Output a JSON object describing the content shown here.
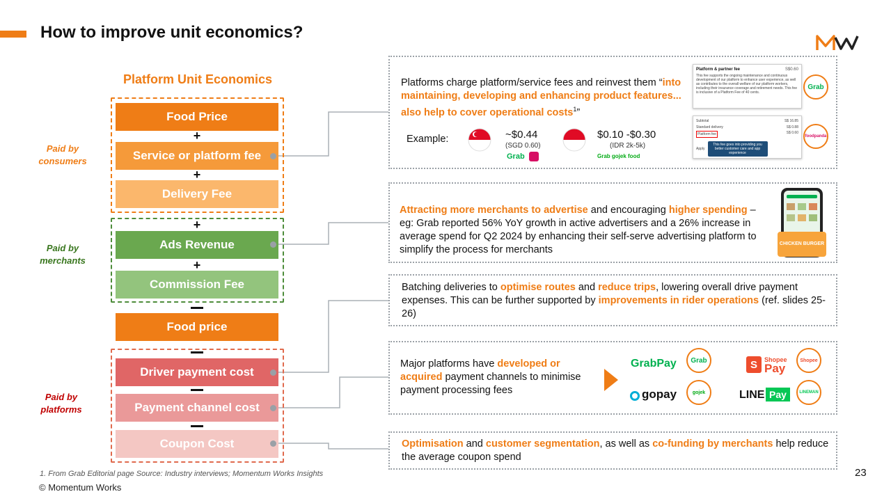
{
  "header": {
    "title": "How to improve unit economics?"
  },
  "logo_text": "MW",
  "page_number": "23",
  "footnote": "1. From Grab Editorial page   Source: Industry interviews; Momentum Works Insights",
  "copyright": "© Momentum Works",
  "diagram": {
    "title": "Platform Unit Economics",
    "boxes": {
      "food_price": "Food Price",
      "service_fee": "Service or platform fee",
      "delivery_fee": "Delivery Fee",
      "ads_revenue": "Ads Revenue",
      "commission_fee": "Commission Fee",
      "food_price_2": "Food price",
      "driver_payment": "Driver payment cost",
      "payment_channel": "Payment channel cost",
      "coupon_cost": "Coupon Cost"
    },
    "plus": "+",
    "labels": {
      "consumers": "Paid by consumers",
      "merchants": "Paid by merchants",
      "platforms": "Paid by platforms"
    },
    "colors": {
      "food_price": "#ef7d16",
      "service_fee": "#f59a3a",
      "delivery_fee": "#fbb76c",
      "ads_revenue": "#6aa84f",
      "commission_fee": "#93c47d",
      "driver_payment": "#e06666",
      "payment_channel": "#ea9999",
      "coupon_cost": "#f4c7c3"
    }
  },
  "panel1": {
    "text_plain": "Platforms charge platform/service fees and reinvest them",
    "quote_open": "“",
    "text_highlight": "into maintaining, developing and enhancing product features... also help to cover operational costs",
    "footnote_mark": "1",
    "quote_close": "”",
    "example_label": "Example:",
    "sg_price": "~$0.44",
    "sg_sub": "(SGD 0.60)",
    "sg_brand": "Grab",
    "id_price": "$0.10 -$0.30",
    "id_sub": "(IDR 2k-5k)",
    "id_brands": "Grab  gojek  food",
    "screenshot1": {
      "title": "Platform & partner fee",
      "amount": "S$0.60",
      "body": "This fee supports the ongoing maintenance and continuous development of our platform to enhance user experience, as well as contributes to the overall welfare of our platform workers, including their insurance coverage and retirement needs. This fee is inclusive of a Platform Fee of 40 cents."
    },
    "screenshot2": {
      "rows": [
        {
          "label": "Subtotal",
          "value": "S$ 16.85"
        },
        {
          "label": "Standard delivery",
          "value": "S$ 0.88"
        },
        {
          "label": "Platform fee",
          "value": "S$ 0.60"
        }
      ],
      "apply": "Apply",
      "tooltip": "This fee goes into providing you better customer care and app experience"
    },
    "bubble1": "Grab",
    "bubble2": "foodpanda"
  },
  "panel2": {
    "hl1": "Attracting more merchants to advertise",
    "t1": " and encouraging ",
    "hl2": "higher spending",
    "t2": " – eg: Grab reported 56% YoY growth in active advertisers and a 26% increase in average spend for Q2 2024 by enhancing their self-serve advertising platform to simplify the process for merchants",
    "phone_banner": "CHICKEN BURGER"
  },
  "panel3": {
    "t1": "Batching deliveries to ",
    "hl1": "optimise routes",
    "t2": " and ",
    "hl2": "reduce trips",
    "t3": ", lowering overall drive payment expenses. This can be further supported by ",
    "hl3": "improvements in rider operations",
    "t4": " (ref. slides 25-26)"
  },
  "panel4": {
    "t1": "Major platforms have ",
    "hl1": "developed or acquired",
    "t2": " payment channels to minimise payment processing fees",
    "grabpay": "GrabPay",
    "shopeepay_top": "Shopee",
    "shopeepay": "Pay",
    "gopay": "gopay",
    "linepay_line": "LINE",
    "linepay_pay": "Pay",
    "b_grab": "Grab",
    "b_shopee": "Shopee",
    "b_gojek": "gojek",
    "b_lineman": "LINEMAN"
  },
  "panel5": {
    "hl1": "Optimisation",
    "t1": " and ",
    "hl2": "customer segmentation",
    "t2": ", as well as ",
    "hl3": "co-funding by merchants",
    "t3": " help reduce the average coupon spend"
  }
}
